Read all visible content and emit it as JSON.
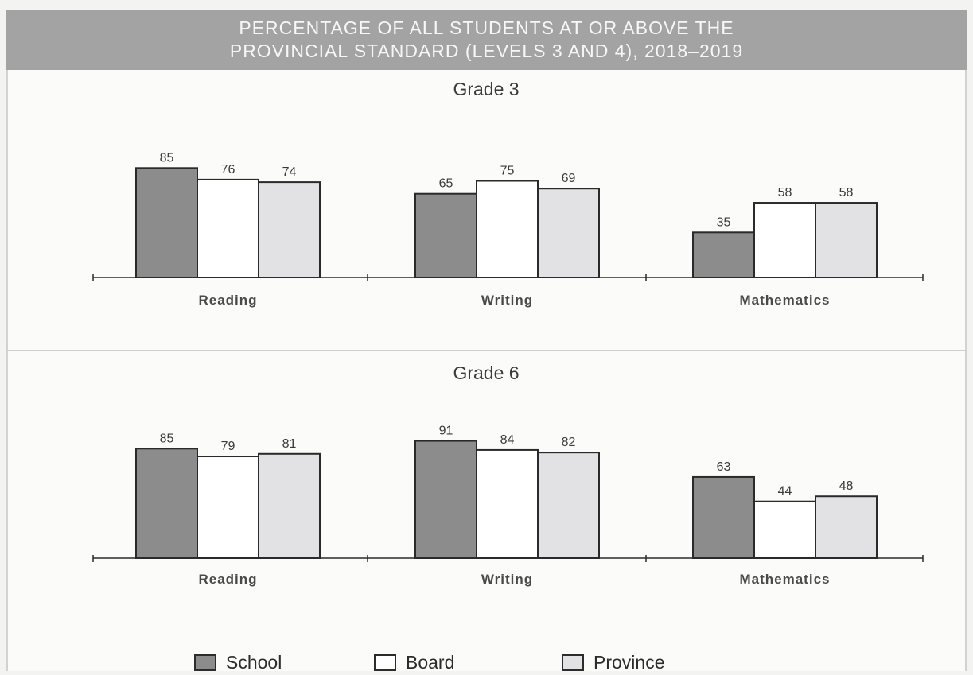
{
  "chart_data": {
    "type": "bar",
    "title": [
      "PERCENTAGE OF ALL STUDENTS AT OR ABOVE THE",
      "PROVINCIAL STANDARD (LEVELS 3 AND 4), 2018–2019"
    ],
    "legend": {
      "placement": "bottom",
      "items": [
        {
          "name": "School",
          "color": "#8c8c8c"
        },
        {
          "name": "Board",
          "color": "#ffffff"
        },
        {
          "name": "Province",
          "color": "#e2e2e4"
        }
      ]
    },
    "panels": [
      {
        "title": "Grade 3",
        "categories": [
          "Reading",
          "Writing",
          "Mathematics"
        ],
        "series": [
          {
            "name": "School",
            "values": [
              85,
              65,
              35
            ]
          },
          {
            "name": "Board",
            "values": [
              76,
              75,
              58
            ]
          },
          {
            "name": "Province",
            "values": [
              74,
              69,
              58
            ]
          }
        ]
      },
      {
        "title": "Grade 6",
        "categories": [
          "Reading",
          "Writing",
          "Mathematics"
        ],
        "series": [
          {
            "name": "School",
            "values": [
              85,
              91,
              63
            ]
          },
          {
            "name": "Board",
            "values": [
              79,
              84,
              44
            ]
          },
          {
            "name": "Province",
            "values": [
              81,
              82,
              48
            ]
          }
        ]
      }
    ],
    "ylim": [
      0,
      100
    ],
    "grid": false
  }
}
